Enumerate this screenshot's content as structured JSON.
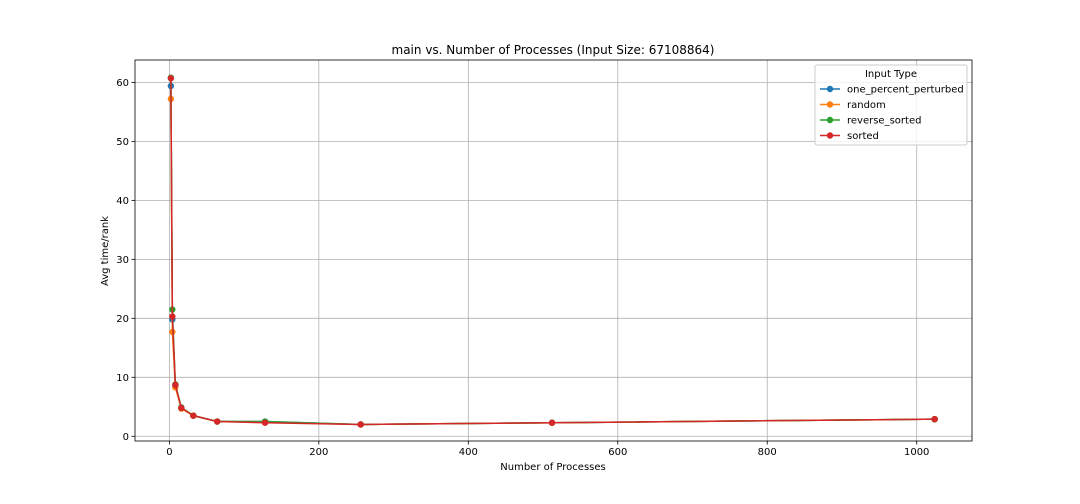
{
  "chart_data": {
    "type": "line",
    "title": "main vs. Number of Processes (Input Size: 67108864)",
    "xlabel": "Number of Processes",
    "ylabel": "Avg time/rank",
    "xlim": [
      -46,
      1074
    ],
    "ylim": [
      -0.8,
      63.8
    ],
    "xticks": [
      0,
      200,
      400,
      600,
      800,
      1000
    ],
    "yticks": [
      0,
      10,
      20,
      30,
      40,
      50,
      60
    ],
    "grid": true,
    "legend": {
      "title": "Input Type",
      "placement": "top-right"
    },
    "x": [
      2,
      4,
      8,
      16,
      32,
      64,
      128,
      256,
      512,
      1024
    ],
    "series": [
      {
        "name": "one_percent_perturbed",
        "color": "#1f77b4",
        "values": [
          59.4,
          19.8,
          8.6,
          4.8,
          3.5,
          2.5,
          2.5,
          2.0,
          2.3,
          2.9
        ]
      },
      {
        "name": "random",
        "color": "#ff7f0e",
        "values": [
          57.2,
          17.7,
          8.3,
          4.7,
          3.5,
          2.5,
          2.4,
          2.0,
          2.3,
          2.9
        ]
      },
      {
        "name": "reverse_sorted",
        "color": "#2ca02c",
        "values": [
          60.8,
          21.5,
          8.8,
          4.9,
          3.5,
          2.5,
          2.5,
          2.0,
          2.3,
          2.9
        ]
      },
      {
        "name": "sorted",
        "color": "#d62728",
        "values": [
          60.7,
          20.3,
          8.7,
          4.8,
          3.5,
          2.5,
          2.3,
          2.0,
          2.3,
          2.9
        ]
      }
    ]
  }
}
